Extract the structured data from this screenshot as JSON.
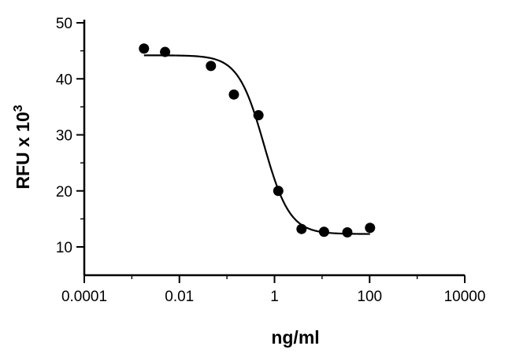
{
  "chart_data": {
    "type": "scatter",
    "xlabel": "ng/ml",
    "ylabel": "RFU x 10",
    "ylabel_superscript": "3",
    "x_scale": "log",
    "xlim": [
      0.0001,
      10000
    ],
    "ylim": [
      5,
      50
    ],
    "x_ticks": [
      0.0001,
      0.01,
      1,
      100,
      10000
    ],
    "x_tick_labels": [
      "0.0001",
      "0.01",
      "1",
      "100",
      "10000"
    ],
    "y_ticks": [
      10,
      20,
      30,
      40,
      50
    ],
    "y_tick_labels": [
      "10",
      "20",
      "30",
      "40",
      "50"
    ],
    "grid": false,
    "series": [
      {
        "x": [
          0.0018,
          0.005,
          0.046,
          0.14,
          0.46,
          1.2,
          3.7,
          11,
          34,
          102
        ],
        "y": [
          45.4,
          44.8,
          42.3,
          37.2,
          33.5,
          20.0,
          13.2,
          12.7,
          12.6,
          13.4
        ]
      }
    ],
    "fit_curve": {
      "type": "four-parameter logistic",
      "top": 44.2,
      "bottom": 12.3,
      "ec50": 0.6,
      "hill_slope": 1.6
    }
  }
}
